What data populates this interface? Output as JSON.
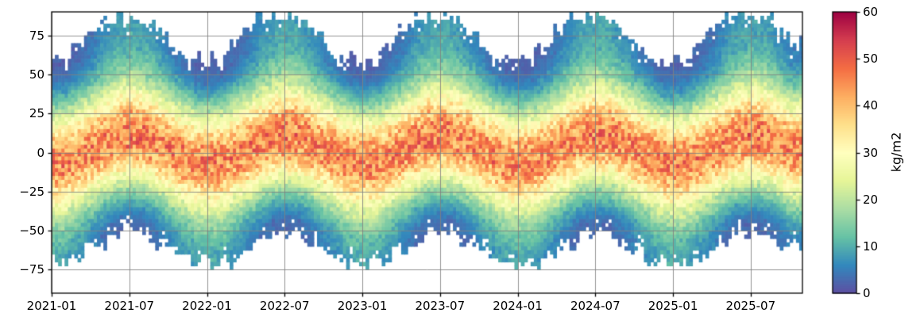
{
  "figure": {
    "background": "#ffffff",
    "grid_color": "#808080",
    "spine_color": "#000000",
    "text_color": "#000000"
  },
  "chart_data": {
    "type": "heatmap",
    "title": "",
    "xlabel": "",
    "ylabel": "",
    "colorbar_label": "kg/m2",
    "value_range": [
      0,
      60
    ],
    "y_range": [
      -90,
      90
    ],
    "grid": true,
    "colormap": "Spectral_r",
    "colormap_stops": [
      "#5e4fa2",
      "#3288bd",
      "#66c2a5",
      "#abdda4",
      "#e6f598",
      "#ffffbf",
      "#fee08b",
      "#fdae61",
      "#f46d43",
      "#d53e4f",
      "#9e0142"
    ],
    "x_tick_labels": [
      "2021-01",
      "2021-07",
      "2022-01",
      "2022-07",
      "2023-01",
      "2023-07",
      "2024-01",
      "2024-07",
      "2025-01",
      "2025-07"
    ],
    "x_tick_months": [
      0,
      6,
      12,
      18,
      24,
      30,
      36,
      42,
      48,
      54
    ],
    "y_tick_labels": [
      "75",
      "50",
      "25",
      "0",
      "−25",
      "−50",
      "−75"
    ],
    "y_tick_values": [
      75,
      50,
      25,
      0,
      -25,
      -50,
      -75
    ],
    "colorbar_tick_labels": [
      "0",
      "10",
      "20",
      "30",
      "40",
      "50",
      "60"
    ],
    "colorbar_ticks": [
      0,
      10,
      20,
      30,
      40,
      50,
      60
    ],
    "lat_bins": [
      -85,
      -75,
      -65,
      -55,
      -45,
      -35,
      -25,
      -15,
      -5,
      5,
      15,
      25,
      35,
      45,
      55,
      65,
      75,
      85
    ],
    "months": [
      "2021-01",
      "2021-02",
      "2021-03",
      "2021-04",
      "2021-05",
      "2021-06",
      "2021-07",
      "2021-08",
      "2021-09",
      "2021-10",
      "2021-11",
      "2021-12",
      "2022-01",
      "2022-02",
      "2022-03",
      "2022-04",
      "2022-05",
      "2022-06",
      "2022-07",
      "2022-08",
      "2022-09",
      "2022-10",
      "2022-11",
      "2022-12",
      "2023-01",
      "2023-02",
      "2023-03",
      "2023-04",
      "2023-05",
      "2023-06",
      "2023-07",
      "2023-08",
      "2023-09",
      "2023-10",
      "2023-11",
      "2023-12",
      "2024-01",
      "2024-02",
      "2024-03",
      "2024-04",
      "2024-05",
      "2024-06",
      "2024-07",
      "2024-08",
      "2024-09",
      "2024-10",
      "2024-11",
      "2024-12",
      "2025-01",
      "2025-02",
      "2025-03",
      "2025-04",
      "2025-05",
      "2025-06",
      "2025-07",
      "2025-08",
      "2025-09",
      "2025-10"
    ],
    "values": [
      [
        null,
        null,
        10,
        13,
        18,
        26,
        36,
        44,
        47,
        42,
        31,
        20,
        10,
        4,
        2,
        null,
        null,
        null
      ],
      [
        null,
        null,
        9,
        12,
        17,
        25,
        34,
        43,
        46,
        42,
        32,
        21,
        11,
        5,
        2,
        null,
        null,
        null
      ],
      [
        null,
        null,
        7,
        9,
        13,
        20,
        30,
        40,
        46,
        44,
        36,
        25,
        15,
        8,
        4,
        3,
        null,
        null
      ],
      [
        null,
        null,
        null,
        6,
        9,
        16,
        25,
        36,
        44,
        46,
        40,
        30,
        20,
        12,
        7,
        5,
        4,
        null
      ],
      [
        null,
        null,
        null,
        3,
        6,
        11,
        20,
        31,
        42,
        46,
        44,
        35,
        25,
        16,
        11,
        8,
        7,
        6
      ],
      [
        null,
        null,
        null,
        null,
        3,
        8,
        16,
        27,
        39,
        46,
        46,
        40,
        30,
        20,
        14,
        10,
        9,
        8
      ],
      [
        null,
        null,
        null,
        null,
        3,
        7,
        15,
        26,
        38,
        46,
        47,
        41,
        31,
        22,
        15,
        11,
        10,
        9
      ],
      [
        null,
        null,
        null,
        null,
        3,
        8,
        16,
        27,
        39,
        46,
        46,
        40,
        30,
        20,
        14,
        10,
        9,
        8
      ],
      [
        null,
        null,
        null,
        3,
        6,
        11,
        20,
        31,
        42,
        46,
        44,
        35,
        25,
        16,
        11,
        8,
        7,
        null
      ],
      [
        null,
        null,
        null,
        6,
        9,
        16,
        25,
        36,
        44,
        46,
        40,
        30,
        20,
        12,
        7,
        5,
        null,
        null
      ],
      [
        null,
        null,
        7,
        9,
        13,
        20,
        30,
        40,
        46,
        44,
        36,
        25,
        15,
        8,
        4,
        null,
        null,
        null
      ],
      [
        null,
        null,
        9,
        12,
        17,
        25,
        34,
        43,
        46,
        42,
        32,
        21,
        11,
        5,
        2,
        null,
        null,
        null
      ],
      [
        null,
        null,
        10,
        13,
        18,
        26,
        36,
        44,
        47,
        42,
        31,
        20,
        10,
        4,
        2,
        null,
        null,
        null
      ],
      [
        null,
        null,
        9,
        12,
        17,
        25,
        34,
        43,
        46,
        42,
        32,
        21,
        11,
        5,
        2,
        null,
        null,
        null
      ],
      [
        null,
        null,
        7,
        9,
        13,
        20,
        30,
        40,
        46,
        44,
        36,
        25,
        15,
        8,
        4,
        3,
        null,
        null
      ],
      [
        null,
        null,
        null,
        6,
        9,
        16,
        25,
        36,
        44,
        46,
        40,
        30,
        20,
        12,
        7,
        5,
        4,
        null
      ],
      [
        null,
        null,
        null,
        3,
        6,
        11,
        20,
        31,
        42,
        46,
        44,
        35,
        25,
        16,
        11,
        8,
        7,
        6
      ],
      [
        null,
        null,
        null,
        null,
        3,
        8,
        16,
        27,
        39,
        46,
        46,
        40,
        30,
        20,
        14,
        10,
        9,
        8
      ],
      [
        null,
        null,
        null,
        null,
        3,
        7,
        15,
        26,
        38,
        46,
        47,
        41,
        31,
        22,
        15,
        11,
        10,
        9
      ],
      [
        null,
        null,
        null,
        null,
        3,
        8,
        16,
        27,
        39,
        46,
        46,
        40,
        30,
        20,
        14,
        10,
        9,
        8
      ],
      [
        null,
        null,
        null,
        3,
        6,
        11,
        20,
        31,
        42,
        46,
        44,
        35,
        25,
        16,
        11,
        8,
        7,
        null
      ],
      [
        null,
        null,
        null,
        6,
        9,
        16,
        25,
        36,
        44,
        46,
        40,
        30,
        20,
        12,
        7,
        5,
        null,
        null
      ],
      [
        null,
        null,
        7,
        9,
        13,
        20,
        30,
        40,
        46,
        44,
        36,
        25,
        15,
        8,
        4,
        null,
        null,
        null
      ],
      [
        null,
        null,
        9,
        12,
        17,
        25,
        34,
        43,
        46,
        42,
        32,
        21,
        11,
        5,
        2,
        null,
        null,
        null
      ],
      [
        null,
        null,
        10,
        13,
        18,
        26,
        36,
        44,
        47,
        42,
        31,
        20,
        10,
        4,
        2,
        null,
        null,
        null
      ],
      [
        null,
        null,
        9,
        12,
        17,
        25,
        34,
        43,
        46,
        42,
        32,
        21,
        11,
        5,
        2,
        null,
        null,
        null
      ],
      [
        null,
        null,
        7,
        9,
        13,
        20,
        30,
        40,
        46,
        44,
        36,
        25,
        15,
        8,
        4,
        3,
        null,
        null
      ],
      [
        null,
        null,
        null,
        6,
        9,
        16,
        25,
        36,
        44,
        46,
        40,
        30,
        20,
        12,
        7,
        5,
        4,
        null
      ],
      [
        null,
        null,
        null,
        3,
        6,
        11,
        20,
        31,
        42,
        46,
        44,
        35,
        25,
        16,
        11,
        8,
        7,
        6
      ],
      [
        null,
        null,
        null,
        null,
        3,
        8,
        16,
        27,
        39,
        46,
        46,
        40,
        30,
        20,
        14,
        10,
        9,
        8
      ],
      [
        null,
        null,
        null,
        null,
        3,
        7,
        15,
        26,
        38,
        46,
        47,
        41,
        31,
        22,
        15,
        11,
        10,
        9
      ],
      [
        null,
        null,
        null,
        null,
        3,
        8,
        16,
        27,
        39,
        46,
        46,
        40,
        30,
        20,
        14,
        10,
        9,
        8
      ],
      [
        null,
        null,
        null,
        3,
        6,
        11,
        20,
        31,
        42,
        46,
        44,
        35,
        25,
        16,
        11,
        8,
        7,
        null
      ],
      [
        null,
        null,
        null,
        6,
        9,
        16,
        25,
        36,
        44,
        46,
        40,
        30,
        20,
        12,
        7,
        5,
        null,
        null
      ],
      [
        null,
        null,
        7,
        9,
        13,
        20,
        30,
        40,
        46,
        44,
        36,
        25,
        15,
        8,
        4,
        null,
        null,
        null
      ],
      [
        null,
        null,
        9,
        12,
        17,
        25,
        34,
        43,
        46,
        42,
        32,
        21,
        11,
        5,
        2,
        null,
        null,
        null
      ],
      [
        null,
        null,
        10,
        13,
        18,
        26,
        36,
        44,
        47,
        42,
        31,
        20,
        10,
        4,
        2,
        null,
        null,
        null
      ],
      [
        null,
        null,
        9,
        12,
        17,
        25,
        34,
        43,
        46,
        42,
        32,
        21,
        11,
        5,
        2,
        null,
        null,
        null
      ],
      [
        null,
        null,
        7,
        9,
        13,
        20,
        30,
        40,
        46,
        44,
        36,
        25,
        15,
        8,
        4,
        3,
        null,
        null
      ],
      [
        null,
        null,
        null,
        6,
        9,
        16,
        25,
        36,
        44,
        46,
        40,
        30,
        20,
        12,
        7,
        5,
        4,
        null
      ],
      [
        null,
        null,
        null,
        3,
        6,
        11,
        20,
        31,
        42,
        46,
        44,
        35,
        25,
        16,
        11,
        8,
        7,
        6
      ],
      [
        null,
        null,
        null,
        null,
        3,
        8,
        16,
        27,
        39,
        46,
        46,
        40,
        30,
        20,
        14,
        10,
        9,
        8
      ],
      [
        null,
        null,
        null,
        null,
        3,
        7,
        15,
        26,
        38,
        46,
        47,
        41,
        31,
        22,
        15,
        11,
        10,
        9
      ],
      [
        null,
        null,
        null,
        null,
        3,
        8,
        16,
        27,
        39,
        46,
        46,
        40,
        30,
        20,
        14,
        10,
        9,
        8
      ],
      [
        null,
        null,
        null,
        3,
        6,
        11,
        20,
        31,
        42,
        46,
        44,
        35,
        25,
        16,
        11,
        8,
        7,
        null
      ],
      [
        null,
        null,
        null,
        6,
        9,
        16,
        25,
        36,
        44,
        46,
        40,
        30,
        20,
        12,
        7,
        5,
        null,
        null
      ],
      [
        null,
        null,
        7,
        9,
        13,
        20,
        30,
        40,
        46,
        44,
        36,
        25,
        15,
        8,
        4,
        null,
        null,
        null
      ],
      [
        null,
        null,
        9,
        12,
        17,
        25,
        34,
        43,
        46,
        42,
        32,
        21,
        11,
        5,
        2,
        null,
        null,
        null
      ],
      [
        null,
        null,
        10,
        13,
        18,
        26,
        36,
        44,
        47,
        42,
        31,
        20,
        10,
        4,
        2,
        null,
        null,
        null
      ],
      [
        null,
        null,
        9,
        12,
        17,
        25,
        34,
        43,
        46,
        42,
        32,
        21,
        11,
        5,
        2,
        null,
        null,
        null
      ],
      [
        null,
        null,
        7,
        9,
        13,
        20,
        30,
        40,
        46,
        44,
        36,
        25,
        15,
        8,
        4,
        3,
        null,
        null
      ],
      [
        null,
        null,
        null,
        6,
        9,
        16,
        25,
        36,
        44,
        46,
        40,
        30,
        20,
        12,
        7,
        5,
        4,
        null
      ],
      [
        null,
        null,
        null,
        3,
        6,
        11,
        20,
        31,
        42,
        46,
        44,
        35,
        25,
        16,
        11,
        8,
        7,
        6
      ],
      [
        null,
        null,
        null,
        null,
        3,
        8,
        16,
        27,
        39,
        46,
        46,
        40,
        30,
        20,
        14,
        10,
        9,
        8
      ],
      [
        null,
        null,
        null,
        null,
        3,
        7,
        15,
        26,
        38,
        46,
        47,
        41,
        31,
        22,
        15,
        11,
        10,
        9
      ],
      [
        null,
        null,
        null,
        null,
        3,
        8,
        16,
        27,
        39,
        46,
        46,
        40,
        30,
        20,
        14,
        10,
        9,
        8
      ],
      [
        null,
        null,
        null,
        3,
        6,
        11,
        20,
        31,
        42,
        46,
        44,
        35,
        25,
        16,
        11,
        8,
        7,
        null
      ],
      [
        null,
        null,
        null,
        6,
        9,
        16,
        25,
        36,
        44,
        46,
        40,
        30,
        20,
        12,
        7,
        5,
        null,
        null
      ]
    ]
  }
}
